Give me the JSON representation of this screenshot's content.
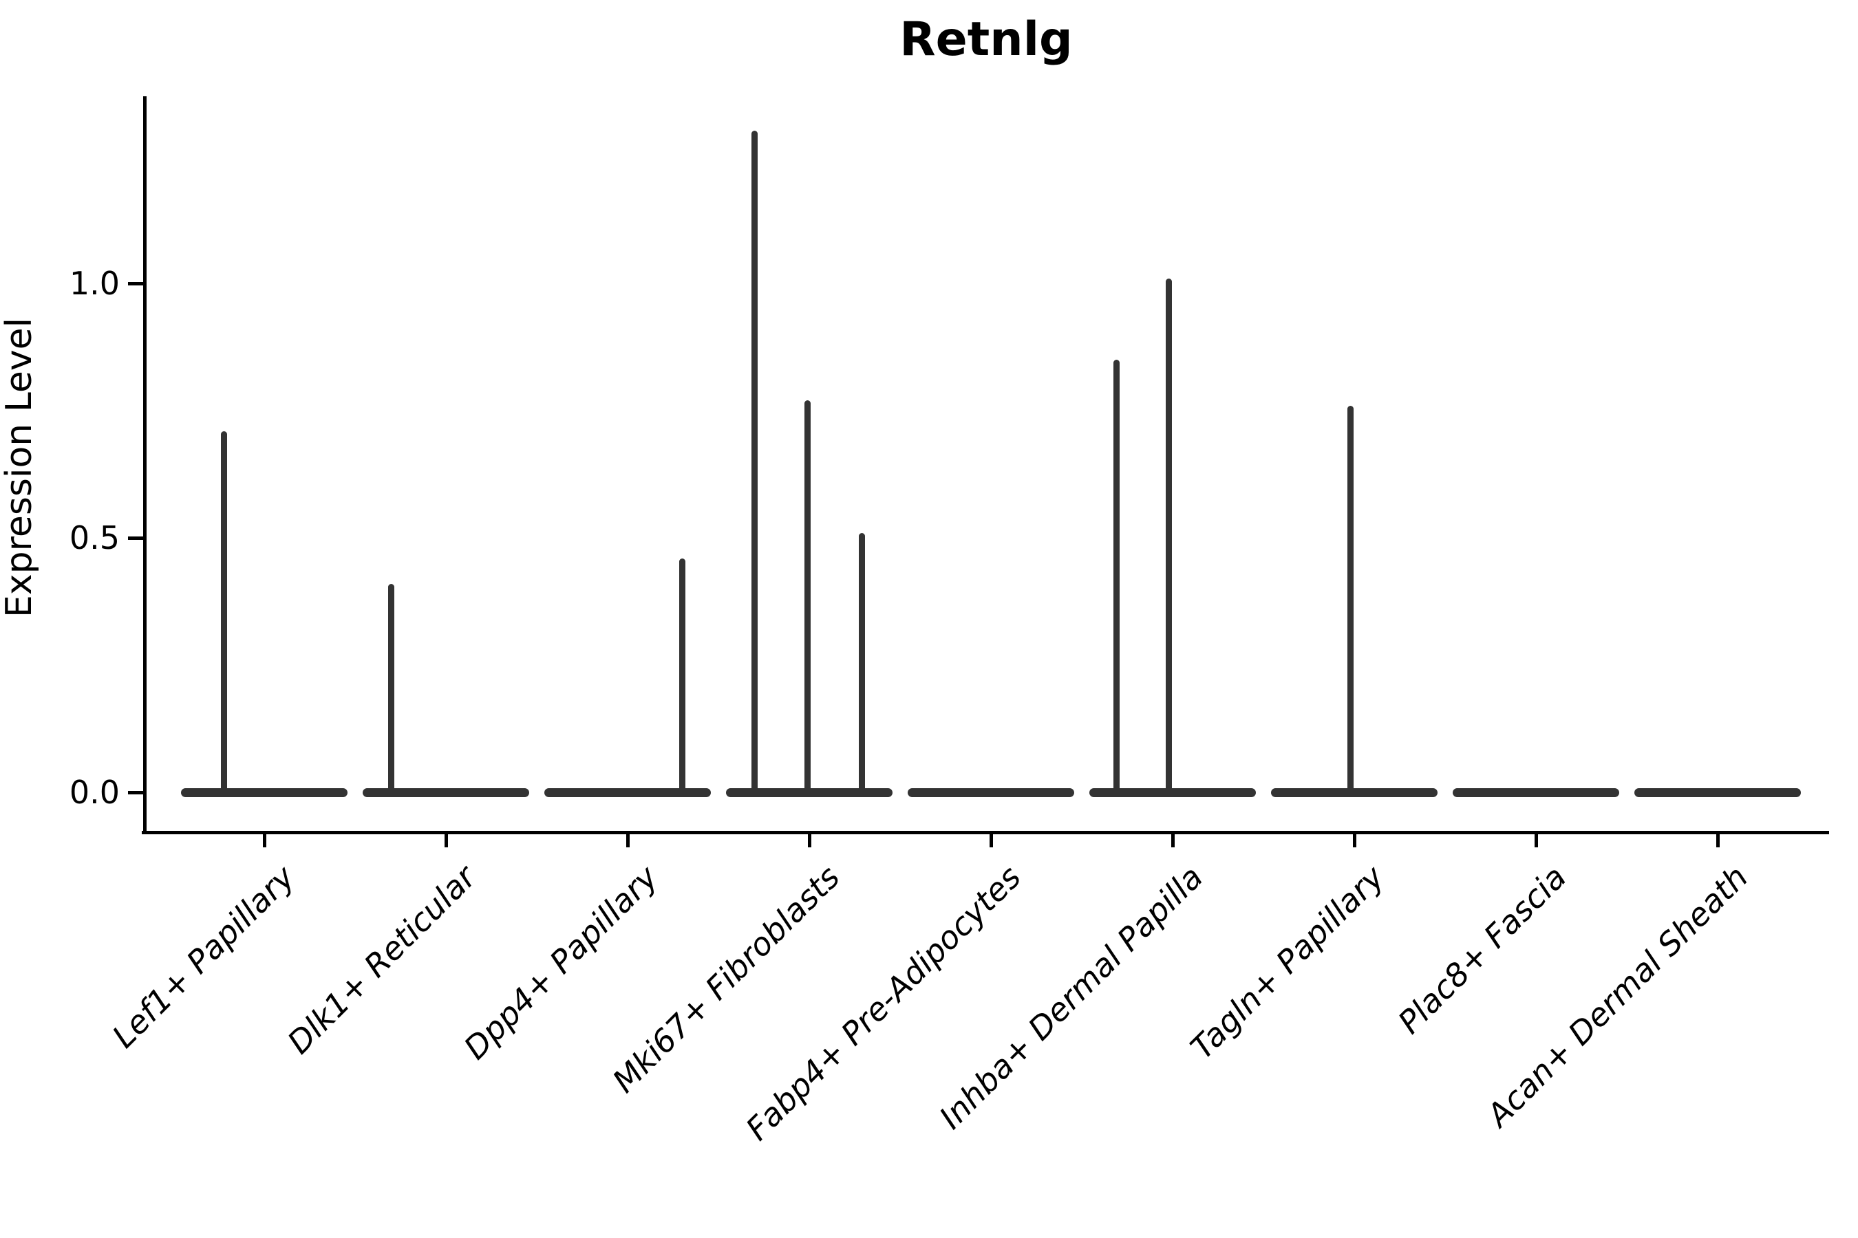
{
  "chart_data": {
    "type": "violin",
    "title": "Retnlg",
    "xlabel": "",
    "ylabel": "Expression Level",
    "ytick_labels": [
      "0.0",
      "0.5",
      "1.0"
    ],
    "ytick_values": [
      0.0,
      0.5,
      1.0
    ],
    "ylim": [
      -0.08,
      1.37
    ],
    "grid": false,
    "legend_position": "none",
    "categories": [
      "Lef1+ Papillary",
      "Dlk1+ Reticular",
      "Dpp4+ Papillary",
      "Mki67+ Fibroblasts",
      "Fabp4+ Pre-Adipocytes",
      "Inhba+ Dermal Papilla",
      "Tagln+ Papillary",
      "Plac8+ Fascia",
      "Acan+ Dermal Sheath"
    ],
    "violins": [
      {
        "category": "Lef1+ Papillary",
        "baseline_value": 0.0,
        "max_value": 0.71,
        "spikes": [
          {
            "offset_frac": -0.22,
            "value": 0.71
          }
        ]
      },
      {
        "category": "Dlk1+ Reticular",
        "baseline_value": 0.0,
        "max_value": 0.41,
        "spikes": [
          {
            "offset_frac": -0.3,
            "value": 0.41
          }
        ]
      },
      {
        "category": "Dpp4+ Papillary",
        "baseline_value": 0.0,
        "max_value": 0.46,
        "spikes": [
          {
            "offset_frac": 0.3,
            "value": 0.46
          }
        ]
      },
      {
        "category": "Mki67+ Fibroblasts",
        "baseline_value": 0.0,
        "max_value": 1.3,
        "spikes": [
          {
            "offset_frac": -0.3,
            "value": 1.3
          },
          {
            "offset_frac": -0.01,
            "value": 0.77
          },
          {
            "offset_frac": 0.29,
            "value": 0.51
          }
        ]
      },
      {
        "category": "Fabp4+ Pre-Adipocytes",
        "baseline_value": 0.0,
        "max_value": 0.0,
        "spikes": []
      },
      {
        "category": "Inhba+ Dermal Papilla",
        "baseline_value": 0.0,
        "max_value": 1.01,
        "spikes": [
          {
            "offset_frac": -0.31,
            "value": 0.85
          },
          {
            "offset_frac": -0.02,
            "value": 1.01
          }
        ]
      },
      {
        "category": "Tagln+ Papillary",
        "baseline_value": 0.0,
        "max_value": 0.76,
        "spikes": [
          {
            "offset_frac": -0.02,
            "value": 0.76
          }
        ]
      },
      {
        "category": "Plac8+ Fascia",
        "baseline_value": 0.0,
        "max_value": 0.0,
        "spikes": []
      },
      {
        "category": "Acan+ Dermal Sheath",
        "baseline_value": 0.0,
        "max_value": 0.0,
        "spikes": []
      }
    ],
    "colors": {
      "violin": "#333333",
      "axis": "#000000",
      "text": "#000000",
      "background": "#ffffff"
    }
  }
}
